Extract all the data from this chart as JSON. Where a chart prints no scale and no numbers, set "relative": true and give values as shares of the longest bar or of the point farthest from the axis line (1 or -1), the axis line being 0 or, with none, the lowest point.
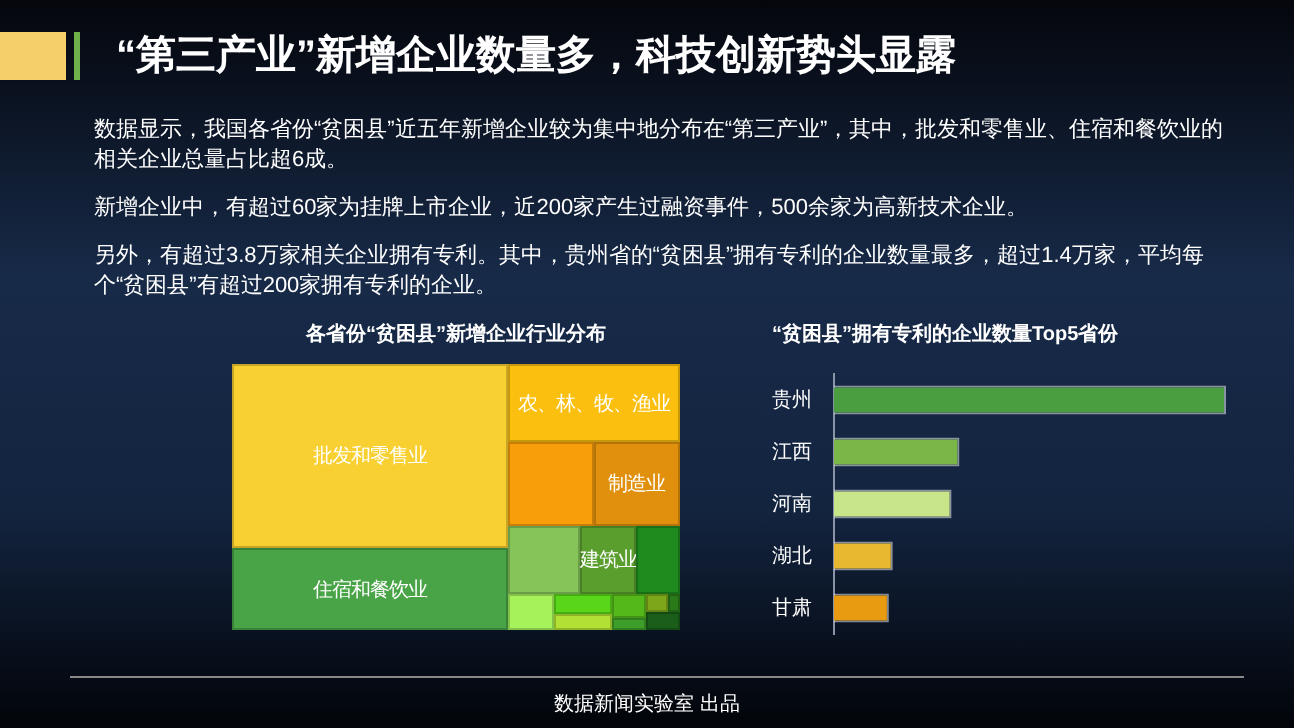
{
  "chart_data": [
    {
      "type": "other",
      "title": "“第三产业”新增企业数量多，科技创新势头显露",
      "annotations": [
        "数据显示，我国各省份“贫困县”近五年新增企业较为集中地分布在“第三产业”，其中，批发和零售业、住宿和餐饮业的相关企业总量占比超6成。",
        "新增企业中，有超过60家为挂牌上市企业，近200家产生过融资事件，500余家为高新技术企业。",
        "另外，有超过3.8万家相关企业拥有专利。其中，贵州省的“贫困县”拥有专利的企业数量最多，超过1.4万家，平均每个“贫困县”有超过200家拥有专利的企业。",
        "数据新闻实验室 出品"
      ]
    },
    {
      "type": "other",
      "title": "各省份“贫困县”新增企业行业分布",
      "categories": [
        "批发和零售业",
        "住宿和餐饮业",
        "农、林、牧、渔业",
        "制造业",
        null,
        null,
        "建筑业",
        null,
        null,
        null,
        null,
        null,
        null,
        null,
        null,
        null
      ],
      "colors": [
        "#f9d031",
        "#48a446",
        "#fbbf10",
        "#e0900c",
        "#f89e0a",
        "#86c45a",
        "#5a9e2e",
        "#1f8b1f",
        "#a6f25a",
        "#59d61a",
        "#55b81a",
        "#b2e034",
        "#7ea61a",
        "#3e9e2a",
        "#2a7a1a",
        "#1a5e1a"
      ]
    },
    {
      "type": "bar",
      "orientation": "horizontal",
      "relative": true,
      "title": "“贫困县”拥有专利的企业数量Top5省份",
      "categories": [
        "贵州",
        "江西",
        "河南",
        "湖北",
        "甘肃"
      ],
      "values": [
        1,
        0.32,
        0.3,
        0.15,
        0.14
      ],
      "colors": [
        "#4a9e3f",
        "#7ab648",
        "#c9e58a",
        "#e8b830",
        "#e89a10"
      ]
    }
  ]
}
